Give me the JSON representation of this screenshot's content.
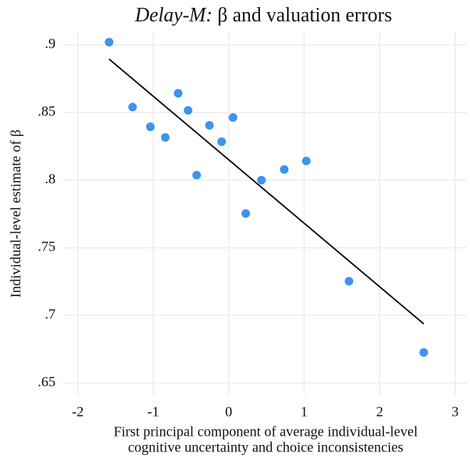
{
  "chart_data": {
    "type": "scatter",
    "title": {
      "emphasis": "Delay-M:",
      "text": "β and valuation errors"
    },
    "x_label": [
      "First principal component of average individual-level",
      "cognitive uncertainty and choice inconsistencies"
    ],
    "y_label": "Individual-level estimate of β",
    "x": [
      -1.585,
      -1.274,
      -1.038,
      -0.84,
      -0.67,
      -0.538,
      -0.425,
      -0.255,
      -0.094,
      0.057,
      0.226,
      0.434,
      0.736,
      1.028,
      1.594,
      2.585
    ],
    "y": [
      0.902,
      0.854,
      0.8395,
      0.8316,
      0.8642,
      0.8516,
      0.8037,
      0.8405,
      0.8284,
      0.8463,
      0.7753,
      0.8,
      0.8079,
      0.8142,
      0.7253,
      0.6726
    ],
    "color": "#3a94f0",
    "fit": {
      "x": [
        -1.585,
        2.585
      ],
      "y": [
        0.8895,
        0.6937
      ],
      "color": "#000000"
    },
    "xlim": [
      -2.2,
      3.15
    ],
    "ylim": [
      0.641,
      0.9095
    ],
    "xticks": [
      -2,
      -1,
      0,
      1,
      2,
      3
    ],
    "yticks": [
      {
        "value": 0.65,
        "label": ".65"
      },
      {
        "value": 0.7,
        "label": ".7"
      },
      {
        "value": 0.75,
        "label": ".75"
      },
      {
        "value": 0.8,
        "label": ".8"
      },
      {
        "value": 0.85,
        "label": ".85"
      },
      {
        "value": 0.9,
        "label": ".9"
      }
    ],
    "grid": true
  }
}
